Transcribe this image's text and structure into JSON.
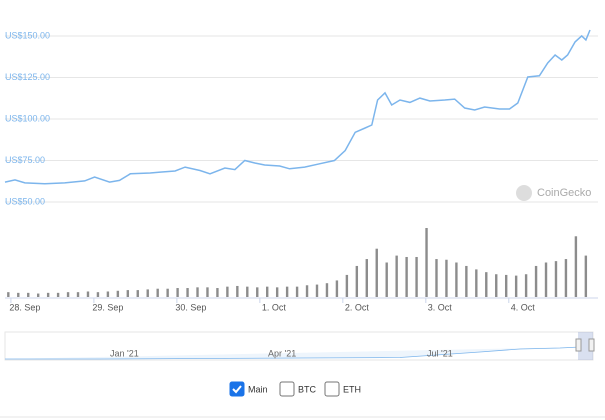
{
  "chart_data": [
    {
      "type": "line",
      "series": [
        {
          "name": "Main",
          "color": "#7cb5ec",
          "x": [
            -0.24,
            -0.12,
            0,
            0.24,
            0.48,
            0.72,
            0.84,
            1.02,
            1.14,
            1.27,
            1.51,
            1.63,
            1.81,
            1.93,
            2.11,
            2.23,
            2.41,
            2.53,
            2.65,
            2.77,
            2.89,
            3.07,
            3.19,
            3.37,
            3.55,
            3.73,
            3.86,
            3.98,
            4.1,
            4.18,
            4.25,
            4.34,
            4.42,
            4.52,
            4.64,
            4.76,
            4.88,
            5.06,
            5.18,
            5.3,
            5.42,
            5.54,
            5.72,
            5.84,
            5.94,
            6.06,
            6.2,
            6.3,
            6.39,
            6.47,
            6.54,
            6.63,
            6.71,
            6.76,
            6.81
          ],
          "values": [
            62,
            63.3,
            61.5,
            61,
            61.5,
            62.7,
            65,
            62,
            63,
            67,
            67.5,
            68,
            68.7,
            71,
            69,
            67,
            70.5,
            69.5,
            75,
            73.5,
            72.3,
            71.7,
            70,
            71,
            73,
            75,
            81,
            92,
            94.6,
            96.4,
            111.4,
            115.7,
            108.4,
            111.4,
            110,
            112.6,
            110.8,
            111.4,
            112,
            106.6,
            105.4,
            107.2,
            106,
            106,
            109.6,
            125.3,
            126,
            133.7,
            138.5,
            135.5,
            138.5,
            146.4,
            150,
            147.6,
            153.6
          ]
        }
      ],
      "xlim": [
        -0.24,
        6.81
      ],
      "xticks": [
        {
          "value": 0,
          "label": "28. Sep"
        },
        {
          "value": 1,
          "label": "29. Sep"
        },
        {
          "value": 2,
          "label": "30. Sep"
        },
        {
          "value": 3,
          "label": "1. Oct"
        },
        {
          "value": 4,
          "label": "2. Oct"
        },
        {
          "value": 5,
          "label": "3. Oct"
        },
        {
          "value": 6,
          "label": "4. Oct"
        }
      ],
      "ylim": [
        46.4,
        159.6
      ],
      "yticks": [
        {
          "value": 50,
          "label": "US$50.00"
        },
        {
          "value": 75,
          "label": "US$75.00"
        },
        {
          "value": 100,
          "label": "US$100.00"
        },
        {
          "value": 125,
          "label": "US$125.00"
        },
        {
          "value": 150,
          "label": "US$150.00"
        }
      ],
      "grid": true
    },
    {
      "type": "bar",
      "color": "#8c8c8c",
      "x": [
        -0.2,
        -0.08,
        0.04,
        0.16,
        0.28,
        0.4,
        0.52,
        0.64,
        0.76,
        0.88,
        1,
        1.12,
        1.24,
        1.36,
        1.48,
        1.6,
        1.72,
        1.84,
        1.96,
        2.08,
        2.2,
        2.32,
        2.44,
        2.56,
        2.68,
        2.8,
        2.92,
        3.04,
        3.16,
        3.28,
        3.4,
        3.52,
        3.64,
        3.76,
        3.88,
        4,
        4.12,
        4.24,
        4.36,
        4.48,
        4.6,
        4.72,
        4.84,
        4.96,
        5.08,
        5.2,
        5.32,
        5.44,
        5.56,
        5.68,
        5.8,
        5.92,
        6.04,
        6.16,
        6.28,
        6.4,
        6.52,
        6.64,
        6.76
      ],
      "values": [
        7,
        6,
        6,
        5,
        6,
        6,
        7,
        7,
        8,
        7,
        8,
        9,
        10,
        10,
        11,
        12,
        12,
        13,
        13,
        14,
        14,
        13,
        15,
        16,
        15,
        14,
        15,
        14,
        15,
        15,
        17,
        18,
        20,
        24,
        32,
        45,
        55,
        70,
        50,
        60,
        58,
        58,
        100,
        55,
        54,
        50,
        45,
        40,
        36,
        33,
        32,
        31,
        33,
        45,
        50,
        52,
        55,
        88,
        60
      ],
      "xlim": [
        -0.24,
        6.81
      ],
      "ylim": [
        0,
        100
      ]
    }
  ],
  "watermark": "CoinGecko",
  "navigator": {
    "labels": [
      "Jan '21",
      "Apr '21",
      "Jul '21"
    ]
  },
  "toggles": [
    {
      "label": "Main",
      "checked": true
    },
    {
      "label": "BTC",
      "checked": false
    },
    {
      "label": "ETH",
      "checked": false
    }
  ]
}
